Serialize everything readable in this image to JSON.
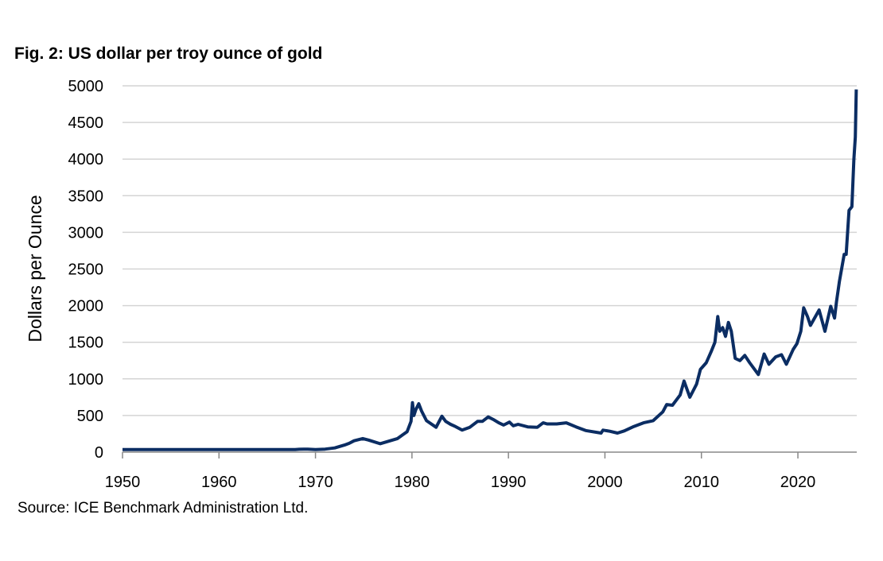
{
  "chart_data": {
    "type": "line",
    "title": "Fig. 2: US dollar per troy ounce of gold",
    "xlabel": "",
    "ylabel": "Dollars per Ounce",
    "source": "Source: ICE Benchmark Administration Ltd.",
    "xlim": [
      1950,
      2026.1
    ],
    "ylim": [
      0,
      5000
    ],
    "xticks": [
      1950,
      1960,
      1970,
      1980,
      1990,
      2000,
      2010,
      2020
    ],
    "yticks": [
      0,
      500,
      1000,
      1500,
      2000,
      2500,
      3000,
      3500,
      4000,
      4500,
      5000
    ],
    "grid": "horizontal",
    "line_color": "#0b2d63",
    "grid_color": "#d4d4d4",
    "series": [
      {
        "x": [
          1950,
          1967.9,
          1968.3,
          1969.2,
          1970.0,
          1971.0,
          1972.0,
          1973.0,
          1973.5,
          1974.0,
          1974.9,
          1975.5,
          1976.7,
          1977.5,
          1978.5,
          1979.5,
          1979.9,
          1980.05,
          1980.2,
          1980.4,
          1980.7,
          1981.0,
          1981.5,
          1982.5,
          1983.1,
          1983.5,
          1984.0,
          1984.5,
          1985.2,
          1986.0,
          1986.8,
          1987.3,
          1987.9,
          1988.5,
          1989.0,
          1989.5,
          1990.1,
          1990.5,
          1991.0,
          1992.0,
          1993.0,
          1993.6,
          1994.0,
          1995.0,
          1996.0,
          1997.0,
          1998.0,
          1999.6,
          1999.8,
          2000.5,
          2001.3,
          2002.0,
          2003.0,
          2004.0,
          2005.0,
          2006.0,
          2006.4,
          2007.0,
          2007.8,
          2008.2,
          2008.8,
          2009.5,
          2009.9,
          2010.5,
          2011.0,
          2011.4,
          2011.7,
          2011.9,
          2012.2,
          2012.5,
          2012.8,
          2013.1,
          2013.5,
          2014.0,
          2014.5,
          2015.0,
          2015.9,
          2016.5,
          2017.0,
          2017.7,
          2018.3,
          2018.8,
          2019.5,
          2019.9,
          2020.3,
          2020.6,
          2021.0,
          2021.3,
          2022.2,
          2022.8,
          2023.4,
          2023.8,
          2024.0,
          2024.3,
          2024.8,
          2025.0,
          2025.3,
          2025.6,
          2025.8,
          2025.95,
          2026.05
        ],
        "y": [
          35,
          35,
          39,
          41,
          36,
          41,
          58,
          97,
          120,
          155,
          185,
          165,
          115,
          145,
          185,
          280,
          420,
          675,
          500,
          580,
          660,
          560,
          430,
          340,
          490,
          420,
          380,
          350,
          300,
          340,
          420,
          420,
          480,
          440,
          400,
          370,
          410,
          360,
          380,
          345,
          340,
          400,
          385,
          385,
          400,
          345,
          295,
          260,
          300,
          285,
          260,
          290,
          350,
          400,
          430,
          550,
          650,
          640,
          780,
          970,
          750,
          930,
          1130,
          1220,
          1370,
          1500,
          1850,
          1650,
          1700,
          1580,
          1770,
          1650,
          1280,
          1250,
          1320,
          1220,
          1060,
          1340,
          1200,
          1300,
          1330,
          1200,
          1400,
          1480,
          1650,
          1970,
          1850,
          1730,
          1940,
          1650,
          1990,
          1830,
          2050,
          2330,
          2700,
          2700,
          3300,
          3350,
          4000,
          4300,
          4950
        ]
      }
    ]
  }
}
